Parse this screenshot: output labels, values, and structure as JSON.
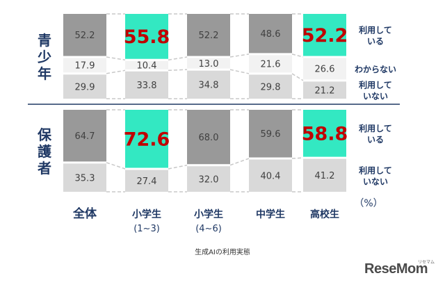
{
  "chart_data": {
    "type": "bar",
    "stacked": true,
    "normalized_percent": true,
    "unit_label": "（%）",
    "categories": [
      {
        "line1": "全体",
        "line2": ""
      },
      {
        "line1": "小学生",
        "line2": "(1~3)"
      },
      {
        "line1": "小学生",
        "line2": "(4~6)"
      },
      {
        "line1": "中学生",
        "line2": ""
      },
      {
        "line1": "高校生",
        "line2": ""
      }
    ],
    "groups": [
      {
        "label": "青少年",
        "series": [
          {
            "legend": [
              "利用して",
              "いる"
            ],
            "values": [
              52.2,
              55.8,
              52.2,
              48.6,
              52.2
            ],
            "highlight": [
              false,
              true,
              false,
              false,
              true
            ]
          },
          {
            "legend": [
              "わからない"
            ],
            "values": [
              17.9,
              10.4,
              13.0,
              21.6,
              26.6
            ],
            "highlight": [
              false,
              false,
              false,
              false,
              false
            ]
          },
          {
            "legend": [
              "利用して",
              "いない"
            ],
            "values": [
              29.9,
              33.8,
              34.8,
              29.8,
              21.2
            ],
            "highlight": [
              false,
              false,
              false,
              false,
              false
            ]
          }
        ]
      },
      {
        "label": "保護者",
        "series": [
          {
            "legend": [
              "利用して",
              "いる"
            ],
            "values": [
              64.7,
              72.6,
              68.0,
              59.6,
              58.8
            ],
            "highlight": [
              false,
              true,
              false,
              false,
              true
            ]
          },
          {
            "legend": [
              "利用して",
              "いない"
            ],
            "values": [
              35.3,
              27.4,
              32.0,
              40.4,
              41.2
            ],
            "highlight": [
              false,
              false,
              false,
              false,
              false
            ]
          }
        ]
      }
    ]
  },
  "caption": "生成AIの利用実態",
  "logo": {
    "name": "ReseMom",
    "sub": "リセマム"
  },
  "colors": {
    "used": "#999999",
    "unknown": "#f2f2f2",
    "not_used": "#d9d9d9",
    "highlight": "#33e8c2",
    "highlight_text": "#c00000",
    "navy": "#1f3864",
    "dashed": "#c8c8c8"
  }
}
